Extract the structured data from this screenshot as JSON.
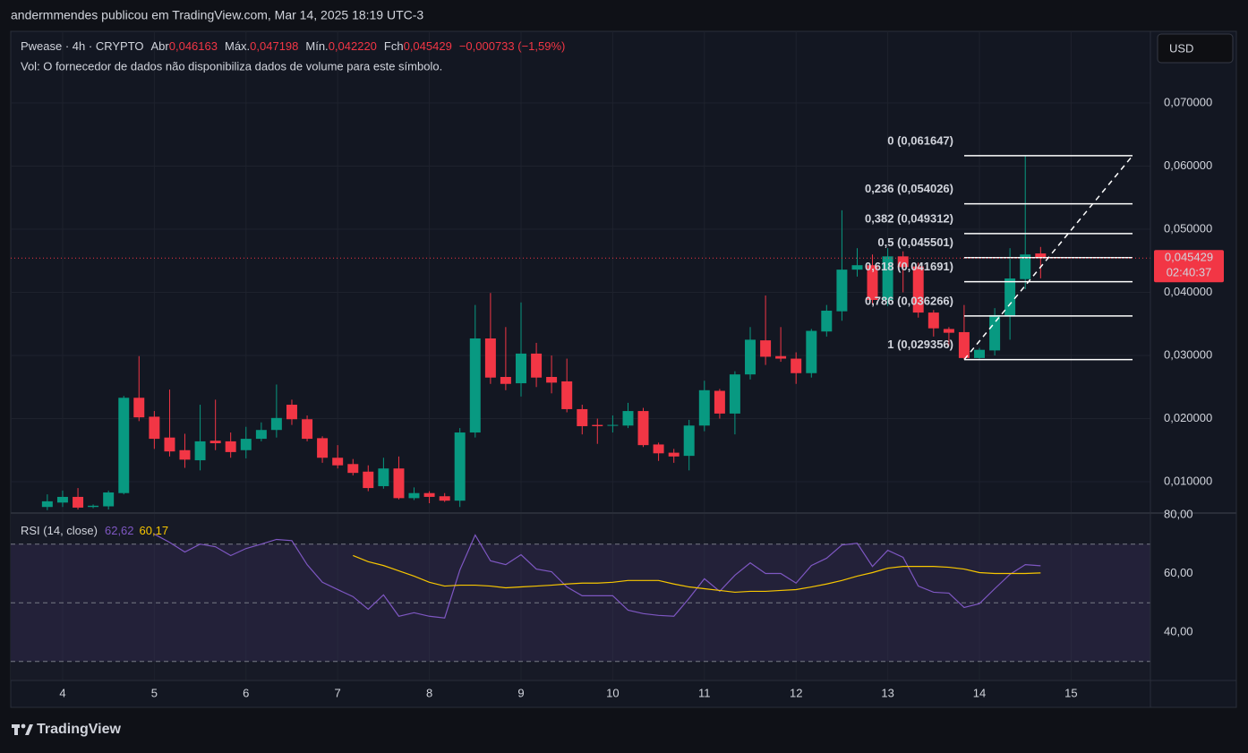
{
  "header": {
    "byline": "andermmendes publicou em TradingView.com, Mar 14, 2025 18:19 UTC-3"
  },
  "footer": {
    "brand": "TradingView"
  },
  "chart_data": {
    "type": "candlestick",
    "legend": {
      "symbol": "Pwease · 4h · CRYPTO",
      "open_label": "Abr",
      "open": "0,046163",
      "high_label": "Máx.",
      "high": "0,047198",
      "low_label": "Mín.",
      "low": "0,042220",
      "close_label": "Fch",
      "close": "0,045429",
      "change": "−0,000733 (−1,59%)",
      "volume_note": "Vol: O fornecedor de dados não disponibiliza dados de volume para este símbolo."
    },
    "currency": "USD",
    "x": [
      3.833,
      4,
      4.167,
      4.333,
      4.5,
      4.667,
      4.833,
      5,
      5.167,
      5.333,
      5.5,
      5.667,
      5.833,
      6,
      6.167,
      6.333,
      6.5,
      6.667,
      6.833,
      7,
      7.167,
      7.333,
      7.5,
      7.667,
      7.833,
      8,
      8.167,
      8.333,
      8.5,
      8.667,
      8.833,
      9,
      9.167,
      9.333,
      9.5,
      9.667,
      9.833,
      10,
      10.167,
      10.333,
      10.5,
      10.667,
      10.833,
      11,
      11.167,
      11.333,
      11.5,
      11.667,
      11.833,
      12,
      12.167,
      12.333,
      12.5,
      12.667,
      12.833,
      13,
      13.167,
      13.333,
      13.5,
      13.667,
      13.833,
      14,
      14.167,
      14.333,
      14.5,
      14.667
    ],
    "open": [
      0.006,
      0.0067,
      0.0076,
      0.006,
      0.0061,
      0.0082,
      0.0233,
      0.0203,
      0.017,
      0.015,
      0.0134,
      0.0165,
      0.0164,
      0.015,
      0.0168,
      0.0182,
      0.0222,
      0.0199,
      0.0169,
      0.0138,
      0.0128,
      0.0116,
      0.0093,
      0.0121,
      0.0074,
      0.0082,
      0.0077,
      0.007,
      0.0178,
      0.0327,
      0.0266,
      0.0256,
      0.0303,
      0.0266,
      0.0259,
      0.0215,
      0.019,
      0.0189,
      0.0189,
      0.0212,
      0.0159,
      0.0146,
      0.0141,
      0.0189,
      0.0244,
      0.0208,
      0.027,
      0.0324,
      0.0299,
      0.0295,
      0.0272,
      0.0338,
      0.037,
      0.0436,
      0.0443,
      0.0388,
      0.0457,
      0.0441,
      0.0368,
      0.0342,
      0.0337,
      0.0296,
      0.0308,
      0.0363,
      0.0421,
      0.046163
    ],
    "high": [
      0.008,
      0.0086,
      0.009,
      0.0064,
      0.0086,
      0.0236,
      0.0299,
      0.0212,
      0.0246,
      0.0176,
      0.0222,
      0.023,
      0.0178,
      0.0187,
      0.0194,
      0.0254,
      0.023,
      0.0205,
      0.0172,
      0.0158,
      0.0136,
      0.0126,
      0.0138,
      0.014,
      0.0091,
      0.0085,
      0.0082,
      0.0185,
      0.038,
      0.0399,
      0.0345,
      0.0384,
      0.032,
      0.03,
      0.0295,
      0.0222,
      0.02,
      0.0205,
      0.0225,
      0.0217,
      0.0162,
      0.0152,
      0.0198,
      0.026,
      0.0247,
      0.0275,
      0.0345,
      0.0395,
      0.0345,
      0.0305,
      0.0342,
      0.038,
      0.053,
      0.047,
      0.046,
      0.047,
      0.0465,
      0.0447,
      0.0372,
      0.0345,
      0.038,
      0.0312,
      0.0375,
      0.047,
      0.061647,
      0.047198
    ],
    "low": [
      0.0055,
      0.006,
      0.0056,
      0.0058,
      0.0056,
      0.008,
      0.0196,
      0.0152,
      0.014,
      0.0122,
      0.0118,
      0.015,
      0.0138,
      0.0137,
      0.0164,
      0.017,
      0.019,
      0.0164,
      0.013,
      0.0121,
      0.011,
      0.0085,
      0.0089,
      0.0072,
      0.0071,
      0.0066,
      0.0068,
      0.006,
      0.017,
      0.0255,
      0.0245,
      0.0235,
      0.025,
      0.024,
      0.021,
      0.0175,
      0.016,
      0.0178,
      0.0185,
      0.0155,
      0.0133,
      0.013,
      0.0118,
      0.018,
      0.02,
      0.0175,
      0.0262,
      0.0285,
      0.029,
      0.0255,
      0.0265,
      0.033,
      0.0355,
      0.0425,
      0.038,
      0.0378,
      0.04,
      0.036,
      0.033,
      0.0315,
      0.029356,
      0.0295,
      0.03,
      0.0325,
      0.0405,
      0.04222
    ],
    "close": [
      0.0069,
      0.0076,
      0.0059,
      0.0062,
      0.0083,
      0.0233,
      0.0202,
      0.0168,
      0.0148,
      0.0135,
      0.0164,
      0.0161,
      0.0147,
      0.0168,
      0.0182,
      0.0201,
      0.0199,
      0.0168,
      0.0138,
      0.0126,
      0.0114,
      0.009,
      0.0121,
      0.0074,
      0.0082,
      0.0076,
      0.007,
      0.0178,
      0.0327,
      0.0265,
      0.0255,
      0.0303,
      0.0265,
      0.0257,
      0.0215,
      0.0188,
      0.0188,
      0.019,
      0.0212,
      0.0158,
      0.0145,
      0.014,
      0.0189,
      0.0245,
      0.0208,
      0.027,
      0.0325,
      0.0298,
      0.0295,
      0.0272,
      0.0339,
      0.0371,
      0.0436,
      0.0443,
      0.0388,
      0.0457,
      0.044,
      0.0368,
      0.0343,
      0.0336,
      0.0296,
      0.0309,
      0.0364,
      0.0422,
      0.046,
      0.045429
    ],
    "up_color": "#089981",
    "down_color": "#f23645",
    "xlim": [
      3.434,
      15.865
    ],
    "xticks": [
      4,
      5,
      6,
      7,
      8,
      9,
      10,
      11,
      12,
      13,
      14,
      15
    ],
    "ylim": [
      0.00504,
      0.08135
    ],
    "yticks": [
      {
        "value": 0.01,
        "label": "0,010000"
      },
      {
        "value": 0.02,
        "label": "0,020000"
      },
      {
        "value": 0.03,
        "label": "0,030000"
      },
      {
        "value": 0.04,
        "label": "0,040000"
      },
      {
        "value": 0.05,
        "label": "0,050000"
      },
      {
        "value": 0.06,
        "label": "0,060000"
      },
      {
        "value": 0.07,
        "label": "0,070000"
      }
    ],
    "grid": true,
    "last_price": {
      "value": 0.045429,
      "label": "0,045429"
    },
    "countdown": "02:40:37",
    "fib_levels": [
      {
        "label": "0 (0,061647)",
        "price": 0.061647
      },
      {
        "label": "0,236 (0,054026)",
        "price": 0.054026
      },
      {
        "label": "0,382 (0,049312)",
        "price": 0.049312
      },
      {
        "label": "0,5 (0,045501)",
        "price": 0.045501
      },
      {
        "label": "0,618 (0,041691)",
        "price": 0.041691
      },
      {
        "label": "0,786 (0,036266)",
        "price": 0.036266
      },
      {
        "label": "1 (0,029356)",
        "price": 0.029356
      }
    ],
    "trend_line": {
      "x": [
        13.834,
        15.67
      ],
      "y": [
        0.029356,
        0.061647
      ]
    },
    "rsi": {
      "title": "RSI (14, close)",
      "value_label": "62,62",
      "ma_label": "60,17",
      "ylim": [
        23.5,
        80.6
      ],
      "yticks": [
        {
          "value": 80,
          "label": "80,00"
        },
        {
          "value": 60,
          "label": "60,00"
        },
        {
          "value": 40,
          "label": "40,00"
        }
      ],
      "bands": [
        70,
        50,
        30
      ],
      "band_fill": "rgba(126,87,194,0.12)",
      "series": [
        {
          "color": "#7e57c2",
          "values": [
            null,
            null,
            null,
            null,
            null,
            null,
            null,
            73.4,
            70.6,
            67.3,
            70.0,
            69.1,
            66.1,
            68.5,
            70.0,
            71.6,
            71.2,
            63.0,
            57.0,
            54.5,
            52.1,
            47.8,
            52.7,
            45.4,
            46.6,
            45.4,
            44.8,
            61.2,
            73.1,
            64.3,
            63.0,
            66.4,
            61.5,
            60.6,
            55.4,
            52.4,
            52.4,
            52.4,
            47.5,
            46.3,
            45.7,
            45.4,
            51.5,
            58.2,
            53.9,
            59.4,
            63.6,
            60.0,
            60.0,
            56.7,
            62.7,
            65.2,
            69.7,
            70.3,
            62.4,
            67.9,
            65.5,
            55.7,
            53.6,
            53.3,
            48.4,
            49.7,
            54.8,
            59.7,
            63.0,
            62.62
          ]
        },
        {
          "color": "#f7c600",
          "values": [
            null,
            null,
            null,
            null,
            null,
            null,
            null,
            null,
            null,
            null,
            null,
            null,
            null,
            null,
            null,
            null,
            null,
            null,
            null,
            null,
            66.1,
            64.0,
            62.7,
            60.9,
            59.1,
            57.0,
            55.7,
            56.0,
            56.0,
            55.7,
            55.1,
            55.4,
            55.7,
            56.0,
            56.4,
            56.7,
            56.7,
            57.0,
            57.6,
            57.6,
            57.6,
            56.4,
            55.4,
            54.8,
            54.2,
            53.6,
            53.9,
            53.9,
            54.2,
            54.5,
            55.4,
            56.4,
            57.6,
            59.1,
            60.3,
            61.8,
            62.4,
            62.4,
            62.4,
            62.1,
            61.5,
            60.3,
            60.0,
            60.0,
            60.0,
            60.17
          ]
        }
      ]
    }
  }
}
